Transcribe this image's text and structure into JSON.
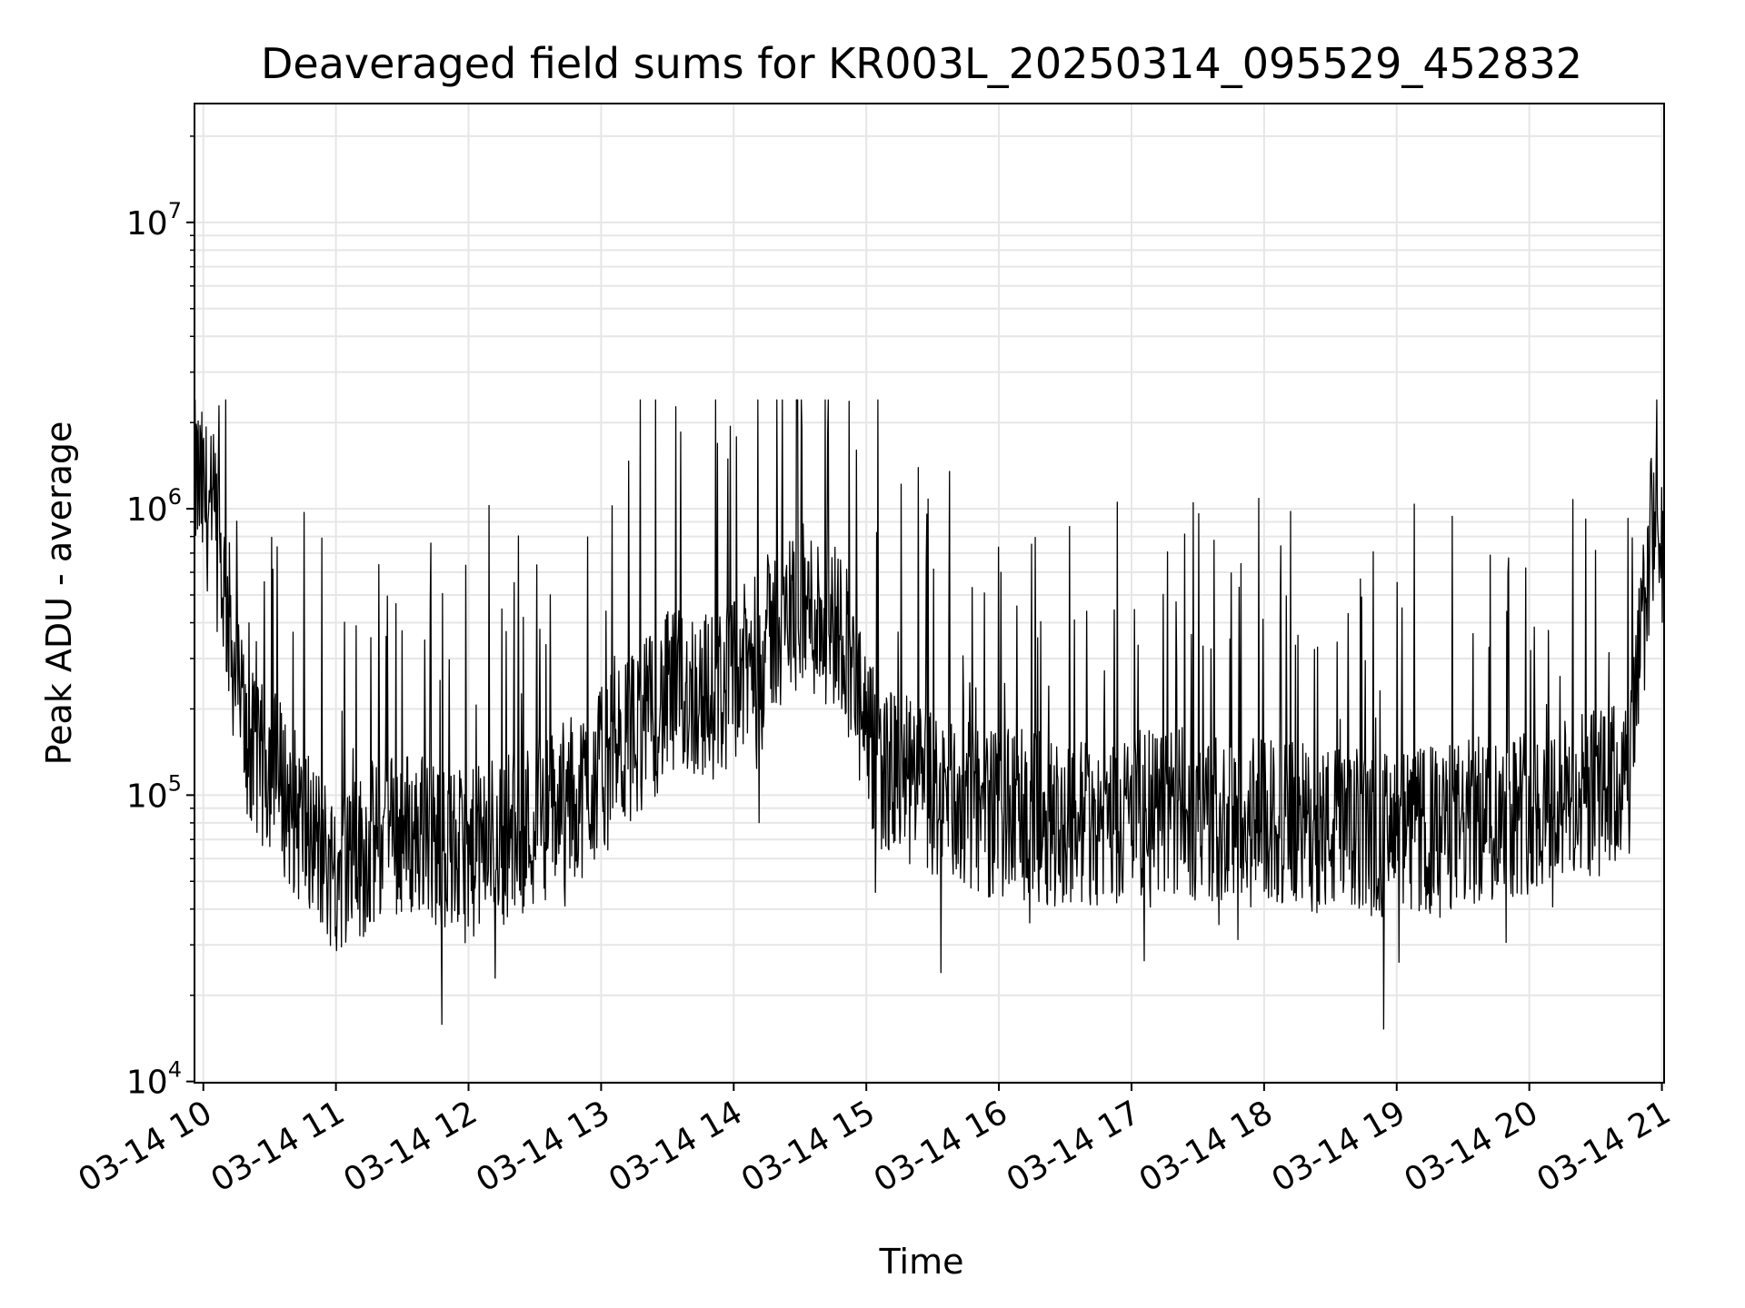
{
  "chart_data": {
    "type": "line",
    "title": "Deaveraged field sums for KR003L_20250314_095529_452832",
    "xlabel": "Time",
    "ylabel": "Peak ADU - average",
    "yscale": "log",
    "ylim": [
      9900,
      26000000
    ],
    "xlim": [
      "2025-03-14 09:56",
      "2025-03-14 21:01"
    ],
    "grid": true,
    "line_color": "#000000",
    "grid_color": "#e6e6e6",
    "x_ticks": [
      {
        "label": "03-14 10",
        "hour": 10
      },
      {
        "label": "03-14 11",
        "hour": 11
      },
      {
        "label": "03-14 12",
        "hour": 12
      },
      {
        "label": "03-14 13",
        "hour": 13
      },
      {
        "label": "03-14 14",
        "hour": 14
      },
      {
        "label": "03-14 15",
        "hour": 15
      },
      {
        "label": "03-14 16",
        "hour": 16
      },
      {
        "label": "03-14 17",
        "hour": 17
      },
      {
        "label": "03-14 18",
        "hour": 18
      },
      {
        "label": "03-14 19",
        "hour": 19
      },
      {
        "label": "03-14 20",
        "hour": 20
      },
      {
        "label": "03-14 21",
        "hour": 21
      }
    ],
    "y_ticks": [
      {
        "base": "10",
        "exp": "4",
        "value": 10000
      },
      {
        "base": "10",
        "exp": "5",
        "value": 100000
      },
      {
        "base": "10",
        "exp": "6",
        "value": 1000000
      },
      {
        "base": "10",
        "exp": "7",
        "value": 10000000
      }
    ],
    "series": [
      {
        "x": [
          "09:56",
          "10:00",
          "10:05",
          "10:10",
          "10:15",
          "10:20",
          "10:25",
          "10:30",
          "10:35",
          "10:40",
          "10:45",
          "10:50",
          "10:55",
          "11:00",
          "11:10",
          "11:20",
          "11:30",
          "11:40",
          "11:50",
          "12:00",
          "12:10",
          "12:20",
          "12:30",
          "12:40",
          "12:50",
          "13:00",
          "13:10",
          "13:20",
          "13:30",
          "13:40",
          "13:50",
          "14:00",
          "14:10",
          "14:20",
          "14:30",
          "14:40",
          "14:50",
          "15:00",
          "15:10",
          "15:20",
          "15:30",
          "15:40",
          "15:50",
          "16:00",
          "16:15",
          "16:30",
          "16:45",
          "17:00",
          "17:15",
          "17:30",
          "17:45",
          "18:00",
          "18:15",
          "18:30",
          "18:45",
          "19:00",
          "19:15",
          "19:30",
          "19:45",
          "20:00",
          "20:15",
          "20:30",
          "20:45",
          "20:55",
          "21:01"
        ],
        "y": [
          1300000,
          1100000,
          900000,
          500000,
          250000,
          150000,
          120000,
          130000,
          110000,
          90000,
          80000,
          70000,
          60000,
          55000,
          60000,
          70000,
          75000,
          70000,
          65000,
          60000,
          70000,
          75000,
          80000,
          90000,
          100000,
          120000,
          150000,
          180000,
          220000,
          230000,
          220000,
          250000,
          300000,
          400000,
          450000,
          420000,
          380000,
          150000,
          120000,
          110000,
          100000,
          95000,
          90000,
          85000,
          85000,
          80000,
          82000,
          85000,
          88000,
          85000,
          82000,
          80000,
          78000,
          75000,
          73000,
          72000,
          75000,
          78000,
          85000,
          90000,
          95000,
          100000,
          110000,
          800000,
          750000
        ]
      }
    ]
  }
}
